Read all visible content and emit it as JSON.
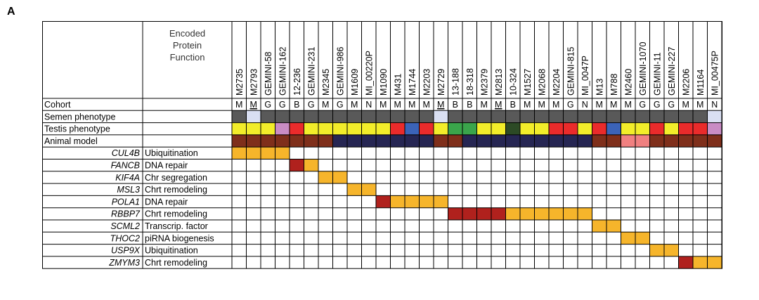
{
  "panel_label": "A",
  "chart_data": {
    "type": "table",
    "title": "",
    "header_label": "Encoded Protein Function",
    "column_header_lines": [
      "Encoded",
      "Protein",
      "Function"
    ],
    "samples": [
      "M2735",
      "M2793",
      "GEMINI-58",
      "GEMINI-162",
      "12-236",
      "GEMINI-231",
      "M2345",
      "GEMINI-986",
      "M1609",
      "MI_00220P",
      "M1090",
      "M431",
      "M1744",
      "M2203",
      "M2729",
      "13-188",
      "18-318",
      "M2379",
      "M2813",
      "10-324",
      "M1527",
      "M2068",
      "M2204",
      "GEMINI-815",
      "MI_0047P",
      "M13",
      "M788",
      "M2460",
      "GEMINI-1070",
      "GEMINI-11",
      "GEMINI-227",
      "M2206",
      "M1164",
      "MI_00475P"
    ],
    "cohort_label": "Cohort",
    "cohort": [
      "M",
      "M",
      "G",
      "G",
      "B",
      "G",
      "M",
      "G",
      "M",
      "N",
      "M",
      "M",
      "M",
      "M",
      "M",
      "B",
      "B",
      "M",
      "M",
      "B",
      "M",
      "M",
      "M",
      "G",
      "N",
      "M",
      "M",
      "M",
      "G",
      "G",
      "G",
      "M",
      "M",
      "N"
    ],
    "cohort_underlined": [
      false,
      true,
      false,
      false,
      false,
      false,
      false,
      false,
      false,
      false,
      false,
      false,
      false,
      false,
      true,
      false,
      false,
      false,
      true,
      false,
      false,
      false,
      false,
      false,
      false,
      false,
      false,
      false,
      false,
      false,
      false,
      false,
      false,
      false
    ],
    "phenotype_rows": [
      {
        "label": "Semen phenotype",
        "cells": [
          "dg",
          "lb",
          "dg",
          "dg",
          "dg",
          "dg",
          "dg",
          "dg",
          "dg",
          "dg",
          "dg",
          "dg",
          "dg",
          "dg",
          "lb",
          "dg",
          "dg",
          "dg",
          "dg",
          "dg",
          "dg",
          "dg",
          "dg",
          "dg",
          "dg",
          "dg",
          "dg",
          "dg",
          "dg",
          "dg",
          "dg",
          "dg",
          "dg",
          "lb"
        ]
      },
      {
        "label": "Testis phenotype",
        "cells": [
          "ye",
          "ye",
          "ye",
          "pk",
          "re",
          "ye",
          "ye",
          "ye",
          "ye",
          "ye",
          "ye",
          "re",
          "bl",
          "re",
          "ye",
          "gr",
          "gr",
          "ye",
          "ye",
          "dk",
          "ye",
          "ye",
          "re",
          "re",
          "ye",
          "re",
          "bl",
          "ye",
          "ye",
          "re",
          "ye",
          "re",
          "re",
          "pk"
        ]
      },
      {
        "label": "Animal model",
        "cells": [
          "br",
          "br",
          "br",
          "br",
          "br",
          "br",
          "br",
          "nv",
          "nv",
          "nv",
          "nv",
          "nv",
          "nv",
          "nv",
          "br",
          "br",
          "nv",
          "nv",
          "nv",
          "nv",
          "nv",
          "nv",
          "nv",
          "nv",
          "nv",
          "br",
          "br",
          "sa",
          "sa",
          "br",
          "br",
          "br",
          "br",
          "br"
        ]
      }
    ],
    "phenotype_colors": {
      "dg": "#595959",
      "lb": "#d9dff2",
      "ye": "#f2ed2a",
      "pk": "#c98cc4",
      "re": "#ea2b2b",
      "bl": "#3b63b8",
      "gr": "#3aa54b",
      "dk": "#2c4a25",
      "br": "#7f2f1b",
      "nv": "#262653",
      "sa": "#f08080"
    },
    "genes": [
      {
        "gene": "CUL4B",
        "function": "Ubiquitination",
        "cells": {
          "0": "or",
          "1": "or",
          "2": "or",
          "3": "or"
        }
      },
      {
        "gene": "FANCB",
        "function": "DNA repair",
        "cells": {
          "4": "dr",
          "5": "or"
        }
      },
      {
        "gene": "KIF4A",
        "function": "Chr segregation",
        "cells": {
          "6": "or",
          "7": "or"
        }
      },
      {
        "gene": "MSL3",
        "function": "Chrt remodeling",
        "cells": {
          "8": "or",
          "9": "or"
        }
      },
      {
        "gene": "POLA1",
        "function": "DNA repair",
        "cells": {
          "10": "dr",
          "11": "or",
          "12": "or",
          "13": "or",
          "14": "or"
        }
      },
      {
        "gene": "RBBP7",
        "function": "Chrt remodeling",
        "cells": {
          "15": "dr",
          "16": "dr",
          "17": "dr",
          "18": "dr",
          "19": "or",
          "20": "or",
          "21": "or",
          "22": "or",
          "23": "or",
          "24": "or"
        }
      },
      {
        "gene": "SCML2",
        "function": "Transcrip. factor",
        "cells": {
          "25": "or",
          "26": "or"
        }
      },
      {
        "gene": "THOC2",
        "function": "piRNA biogenesis",
        "cells": {
          "27": "or",
          "28": "or"
        }
      },
      {
        "gene": "USP9X",
        "function": "Ubiquitination",
        "cells": {
          "29": "or",
          "30": "or"
        }
      },
      {
        "gene": "ZMYM3",
        "function": "Chrt remodeling",
        "cells": {
          "31": "dr",
          "32": "or",
          "33": "or"
        }
      }
    ],
    "variant_colors": {
      "or": "#f6b52b",
      "dr": "#b0211d"
    }
  }
}
